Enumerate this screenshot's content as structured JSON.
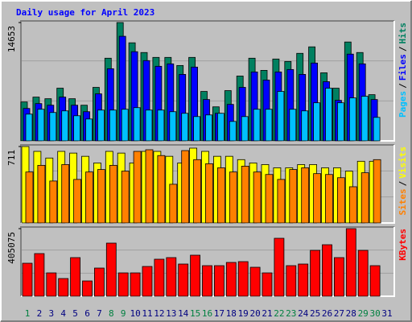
{
  "chart_data": {
    "type": "bar",
    "title": "Daily usage for April 2023",
    "categories": [
      "1",
      "2",
      "3",
      "4",
      "5",
      "6",
      "7",
      "8",
      "9",
      "10",
      "11",
      "12",
      "13",
      "14",
      "15",
      "16",
      "17",
      "18",
      "19",
      "20",
      "21",
      "22",
      "23",
      "24",
      "25",
      "26",
      "27",
      "28",
      "29",
      "30",
      "31"
    ],
    "category_colors": [
      "#008040",
      "#000080",
      "#000080",
      "#000080",
      "#000080",
      "#000080",
      "#000080",
      "#008040",
      "#008040",
      "#000080",
      "#000080",
      "#000080",
      "#000080",
      "#000080",
      "#008040",
      "#008040",
      "#000080",
      "#000080",
      "#000080",
      "#000080",
      "#000080",
      "#008040",
      "#008040",
      "#000080",
      "#000080",
      "#000080",
      "#000080",
      "#000080",
      "#008040",
      "#008040",
      "#000080"
    ],
    "legend_separator": "/",
    "panels": [
      {
        "ylim": [
          0,
          14653
        ],
        "yticks": [
          14653
        ],
        "series": [
          {
            "name": "Hits",
            "color": "#008060",
            "values": [
              4818,
              5420,
              5219,
              6524,
              5219,
              4416,
              6624,
              10237,
              14653,
              12144,
              10940,
              10337,
              10337,
              9334,
              10337,
              6122,
              4215,
              6223,
              8029,
              10237,
              8732,
              10137,
              9835,
              10839,
              11642,
              8431,
              6524,
              12244,
              10940,
              5721,
              null
            ]
          },
          {
            "name": "Files",
            "color": "#0000ff",
            "values": [
              4016,
              4618,
              4418,
              5422,
              4418,
              3614,
              5823,
              8934,
              12951,
              11044,
              9940,
              9237,
              9538,
              8233,
              9137,
              5120,
              3414,
              4518,
              6626,
              8534,
              7530,
              8534,
              8835,
              8233,
              9638,
              7329,
              5020,
              10743,
              9538,
              5120,
              null
            ]
          },
          {
            "name": "Pages",
            "color": "#00c0ff",
            "values": [
              3313,
              3916,
              3514,
              3715,
              3112,
              2711,
              3815,
              3815,
              3916,
              4116,
              3815,
              3815,
              3614,
              3414,
              3012,
              3213,
              3414,
              2410,
              3012,
              3916,
              3916,
              6124,
              3916,
              3715,
              4719,
              6526,
              4719,
              5321,
              5522,
              2912,
              null
            ]
          }
        ]
      },
      {
        "ylim": [
          0,
          711
        ],
        "yticks": [
          711
        ],
        "series": [
          {
            "name": "Visits",
            "color": "#ffff00",
            "values": [
              711,
              666,
              604,
              666,
              650,
              620,
              558,
              666,
              650,
              558,
              666,
              666,
              620,
              558,
              696,
              666,
              620,
              620,
              589,
              558,
              543,
              513,
              513,
              543,
              543,
              513,
              513,
              482,
              574,
              574,
              null
            ]
          },
          {
            "name": "Sites",
            "color": "#ff8000",
            "values": [
              474,
              536,
              390,
              543,
              405,
              474,
              497,
              536,
              482,
              666,
              681,
              627,
              360,
              673,
              589,
              551,
              513,
              474,
              528,
              474,
              451,
              405,
              497,
              513,
              459,
              451,
              421,
              337,
              467,
              589,
              null
            ]
          }
        ]
      },
      {
        "ylim": [
          0,
          405075
        ],
        "yticks": [
          405075
        ],
        "series": [
          {
            "name": "KBytes",
            "color": "#ff0000",
            "values": [
              197702,
              255566,
              139838,
              106084,
              231456,
              91618,
              168770,
              318252,
              139838,
              139838,
              178414,
              221812,
              231456,
              192880,
              245922,
              183236,
              183236,
              202524,
              207346,
              173592,
              139838,
              347184,
              183236,
              192880,
              274854,
              308608,
              231456,
              405075,
              274854,
              183236,
              null
            ]
          }
        ]
      }
    ]
  }
}
